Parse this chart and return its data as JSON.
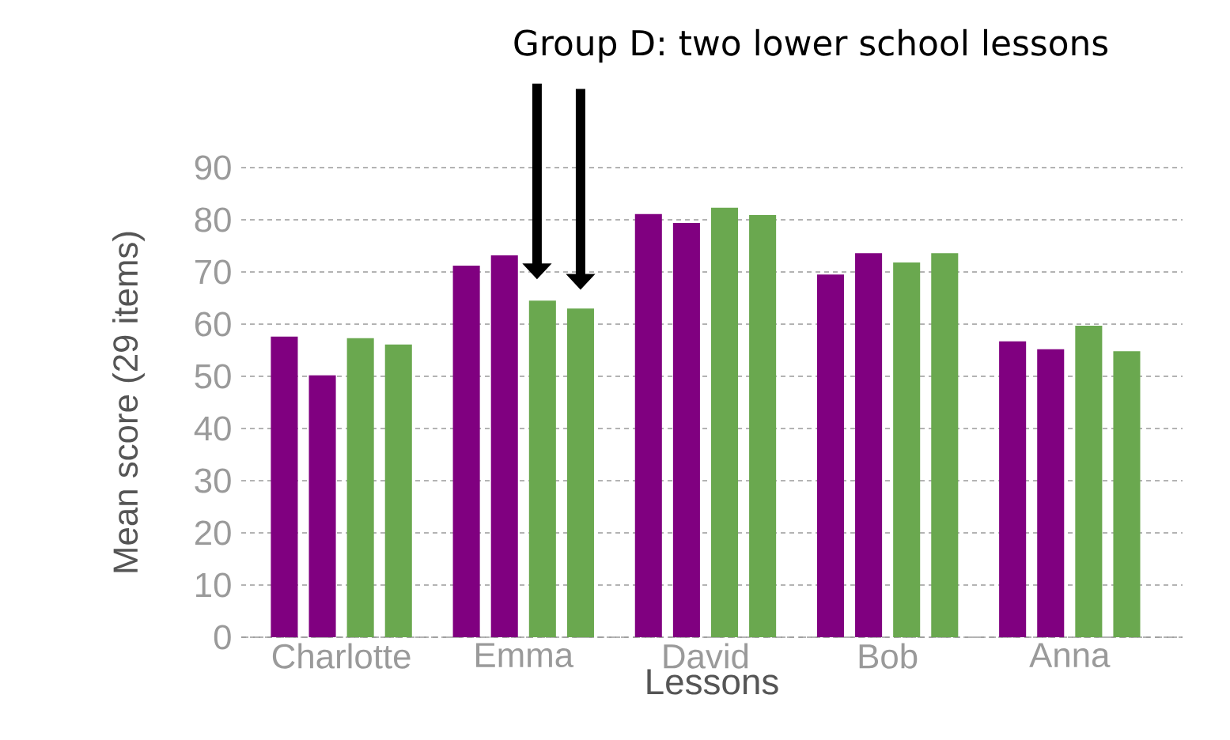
{
  "chart_data": {
    "type": "bar",
    "xlabel": "Lessons",
    "ylabel": "Mean score (29 items)",
    "categories": [
      "Charlotte",
      "Emma",
      "David",
      "Bob",
      "Anna"
    ],
    "series": [
      {
        "color": "#800080",
        "values": [
          57.6,
          71.2,
          81.1,
          69.5,
          56.7
        ]
      },
      {
        "color": "#800080",
        "values": [
          50.2,
          73.2,
          79.4,
          73.6,
          55.2
        ]
      },
      {
        "color": "#6aa84f",
        "values": [
          57.3,
          64.5,
          82.3,
          71.8,
          59.7
        ]
      },
      {
        "color": "#6aa84f",
        "values": [
          56.1,
          63.0,
          80.9,
          73.6,
          54.8
        ]
      }
    ],
    "ylim": [
      0,
      90
    ],
    "yticks": [
      0,
      10,
      20,
      30,
      40,
      50,
      60,
      70,
      80,
      90
    ],
    "grid": "y",
    "annotations": [
      "Group D: two lower school lessons"
    ]
  }
}
